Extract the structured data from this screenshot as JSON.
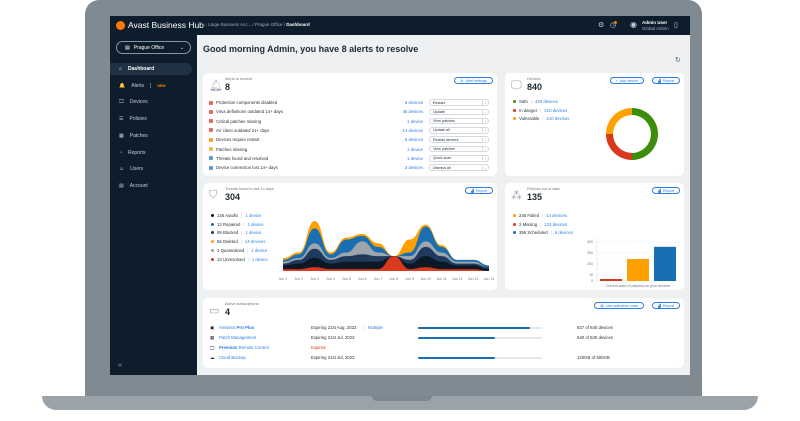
{
  "topbar": {
    "logo": "Avast Business Hub",
    "breadcrumb": [
      "Large Business Acc...",
      "Prague Office",
      "Dashboard"
    ],
    "user_name": "Admin User",
    "user_role": "Global Admin",
    "icons": [
      "gear-icon",
      "notification-clock-icon",
      "avatar-icon",
      "apps-icon"
    ]
  },
  "sidebar": {
    "office": "Prague Office",
    "items": [
      {
        "label": "Dashboard",
        "icon": "⌂",
        "active": true
      },
      {
        "label": "Alerts",
        "icon": "🔔",
        "badge": "NEW"
      },
      {
        "label": "Devices",
        "icon": "🖵"
      },
      {
        "label": "Policies",
        "icon": "☰"
      },
      {
        "label": "Patches",
        "icon": "▦"
      },
      {
        "label": "Reports",
        "icon": "◔"
      },
      {
        "label": "Users",
        "icon": "☺"
      },
      {
        "label": "Account",
        "icon": "▤"
      }
    ],
    "collapse": "«"
  },
  "main": {
    "title": "Good morning Admin, you have 8 alerts to resolve"
  },
  "alerts": {
    "label": "Alerts to resolve",
    "count": "8",
    "settings": "Alert settings",
    "rows": [
      {
        "text": "Protection components disabled",
        "link": "6 devices",
        "action": "Restart",
        "color": "#e8685a"
      },
      {
        "text": "Virus definitions outdated 14+ days",
        "link": "45 devices",
        "action": "Update",
        "color": "#e8685a"
      },
      {
        "text": "Critical patches missing",
        "link": "1 device",
        "action": "View patches",
        "color": "#e8685a"
      },
      {
        "text": "AV client outdated 21+ days",
        "link": "14 devices",
        "action": "Update all",
        "color": "#e8685a"
      },
      {
        "text": "Devices require restart",
        "link": "6 devices",
        "action": "Restart devices",
        "color": "#f5a623"
      },
      {
        "text": "Patches missing",
        "link": "1 device",
        "action": "View patches",
        "color": "#f5b94a"
      },
      {
        "text": "Threats found and resolved",
        "link": "1 device",
        "action": "Quick scan",
        "color": "#5b9bd5"
      },
      {
        "text": "Device connection lost 14+ days",
        "link": "3 devices",
        "action": "Dismiss all",
        "color": "#5b9bd5"
      }
    ]
  },
  "devices": {
    "label": "Devices",
    "count": "840",
    "add": "Add device",
    "report": "Report",
    "items": [
      {
        "label": "Safe",
        "link": "420 devices",
        "value": 420,
        "color": "#3d8c0c"
      },
      {
        "label": "In danger",
        "link": "210 devices",
        "value": 210,
        "color": "#d9391c"
      },
      {
        "label": "Vulnerable",
        "link": "210 devices",
        "value": 210,
        "color": "#ff9f00"
      }
    ]
  },
  "threats": {
    "label": "Threats found in last 14 days",
    "count": "304",
    "report": "Report",
    "items": [
      {
        "label": "145 Autofix",
        "link": "1 device",
        "color": "#0c1824"
      },
      {
        "label": "12 Repaired",
        "link": "1 device",
        "color": "#1a6fb3"
      },
      {
        "label": "89 Blocked",
        "link": "1 device",
        "color": "#1f3a5c"
      },
      {
        "label": "56 Deleted",
        "link": "14 devices",
        "color": "#ff9f00"
      },
      {
        "label": "2 Quarantined",
        "link": "1 device",
        "color": "#9ea6ad"
      },
      {
        "label": "13 Unresolved",
        "link": "1 device",
        "color": "#d9391c"
      }
    ]
  },
  "patches": {
    "label": "Patches out of date",
    "count": "135",
    "report": "Report",
    "items": [
      {
        "label": "245 Failed",
        "link": "14 devices",
        "color": "#ff9f00"
      },
      {
        "label": "2 Missing",
        "link": "123 devices",
        "color": "#d9391c"
      },
      {
        "label": "356 Scheduled",
        "link": "6 devices",
        "color": "#1a6fb3"
      }
    ]
  },
  "subscriptions": {
    "label": "Active subscriptions",
    "count": "4",
    "activation": "Use activation code",
    "report": "Report",
    "rows": [
      {
        "name_a": "Antivirus ",
        "name_b": "Pro Plus",
        "bold": "b",
        "icon": "▣",
        "expiry": "Expiring 21st Aug, 2022",
        "extra": "Multiple",
        "fill": 0.9,
        "usage": "827 of 840 devices"
      },
      {
        "name_a": "Patch Management",
        "name_b": "",
        "bold": "",
        "icon": "▦",
        "expiry": "Expiring 21st Jul, 2022",
        "extra": "",
        "fill": 0.62,
        "usage": "540 of 840 devices"
      },
      {
        "name_a": "Premium",
        "name_b": " Remote Control",
        "bold": "a",
        "icon": "🖵",
        "expiry": "Expired",
        "expired": true,
        "extra": "",
        "fill": null,
        "usage": ""
      },
      {
        "name_a": "Cloud Backup",
        "name_b": "",
        "bold": "",
        "icon": "☁",
        "expiry": "Expiring 21st Jul, 2022",
        "extra": "",
        "fill": 0.62,
        "usage": "120GB of 500GB"
      }
    ]
  },
  "chart_data": [
    {
      "type": "area",
      "stacked": true,
      "x": [
        "Jun 1",
        "Jun 2",
        "Jun 3",
        "Jun 4",
        "Jun 5",
        "Jun 6",
        "Jun 7",
        "Jun 8",
        "Jun 9",
        "Jun 10",
        "Jun 11",
        "Jun 12",
        "Jun 13",
        "Jun 14"
      ],
      "series": [
        {
          "name": "Unresolved",
          "color": "#d9391c",
          "values": [
            1,
            1,
            2,
            1,
            1,
            1,
            1,
            8,
            1,
            2,
            1,
            1,
            1,
            0
          ]
        },
        {
          "name": "Autofix",
          "color": "#0c1824",
          "values": [
            2,
            3,
            5,
            3,
            4,
            4,
            4,
            0,
            3,
            6,
            4,
            2,
            2,
            1
          ]
        },
        {
          "name": "Blocked",
          "color": "#1f3a5c",
          "values": [
            1,
            2,
            5,
            2,
            3,
            4,
            3,
            0,
            2,
            5,
            3,
            1,
            1,
            1
          ]
        },
        {
          "name": "Quarantined",
          "color": "#9ea6ad",
          "values": [
            1,
            1,
            3,
            1,
            2,
            7,
            2,
            0,
            2,
            3,
            2,
            1,
            1,
            0
          ]
        },
        {
          "name": "Repaired",
          "color": "#1a6fb3",
          "values": [
            1,
            2,
            8,
            2,
            7,
            3,
            3,
            0,
            2,
            8,
            3,
            1,
            1,
            1
          ]
        },
        {
          "name": "Deleted",
          "color": "#ff9f00",
          "values": [
            1,
            1,
            4,
            1,
            1,
            1,
            2,
            0,
            7,
            1,
            1,
            0,
            0,
            0
          ]
        }
      ],
      "grid": false
    },
    {
      "type": "bar",
      "categories": [
        "Missing",
        "Failed",
        "Scheduled"
      ],
      "values": [
        2,
        245,
        356
      ],
      "colors": [
        "#d9391c",
        "#ff9f00",
        "#1a6fb3"
      ],
      "yticks": [
        0,
        10,
        200,
        300,
        400
      ],
      "xlabel": "Current state of patches on your devices",
      "grid": true
    },
    {
      "type": "pie",
      "donut": true,
      "values": [
        420,
        210,
        210
      ],
      "colors": [
        "#3d8c0c",
        "#d9391c",
        "#ff9f00"
      ]
    }
  ]
}
